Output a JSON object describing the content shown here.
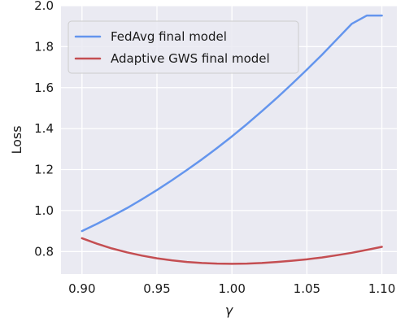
{
  "chart_data": {
    "type": "line",
    "title": "",
    "xlabel": "γ",
    "ylabel": "Loss",
    "xlim": [
      0.886,
      1.11
    ],
    "ylim": [
      0.69,
      2.0
    ],
    "x_ticks": [
      0.9,
      0.95,
      1.0,
      1.05,
      1.1
    ],
    "x_tick_labels": [
      "0.90",
      "0.95",
      "1.00",
      "1.05",
      "1.10"
    ],
    "y_ticks": [
      0.8,
      1.0,
      1.2,
      1.4,
      1.6,
      1.8,
      2.0
    ],
    "y_tick_labels": [
      "0.8",
      "1.0",
      "1.2",
      "1.4",
      "1.6",
      "1.8",
      "2.0"
    ],
    "grid": true,
    "legend_position": "top-left",
    "series": [
      {
        "name": "FedAvg final model",
        "color": "#6495ED",
        "x": [
          0.9,
          0.91,
          0.92,
          0.93,
          0.94,
          0.95,
          0.96,
          0.97,
          0.98,
          0.99,
          1.0,
          1.01,
          1.02,
          1.03,
          1.04,
          1.05,
          1.06,
          1.07,
          1.08,
          1.09,
          1.1
        ],
        "y": [
          0.9,
          0.935,
          0.973,
          1.012,
          1.055,
          1.1,
          1.148,
          1.198,
          1.25,
          1.305,
          1.362,
          1.422,
          1.485,
          1.55,
          1.618,
          1.688,
          1.76,
          1.836,
          1.912,
          1.952,
          1.952
        ]
      },
      {
        "name": "Adaptive GWS final model",
        "color": "#C44E52",
        "x": [
          0.9,
          0.91,
          0.92,
          0.93,
          0.94,
          0.95,
          0.96,
          0.97,
          0.98,
          0.99,
          1.0,
          1.01,
          1.02,
          1.03,
          1.04,
          1.05,
          1.06,
          1.07,
          1.08,
          1.09,
          1.1
        ],
        "y": [
          0.865,
          0.838,
          0.815,
          0.796,
          0.78,
          0.767,
          0.757,
          0.749,
          0.744,
          0.741,
          0.74,
          0.741,
          0.744,
          0.749,
          0.755,
          0.762,
          0.771,
          0.782,
          0.794,
          0.808,
          0.823
        ]
      }
    ]
  }
}
